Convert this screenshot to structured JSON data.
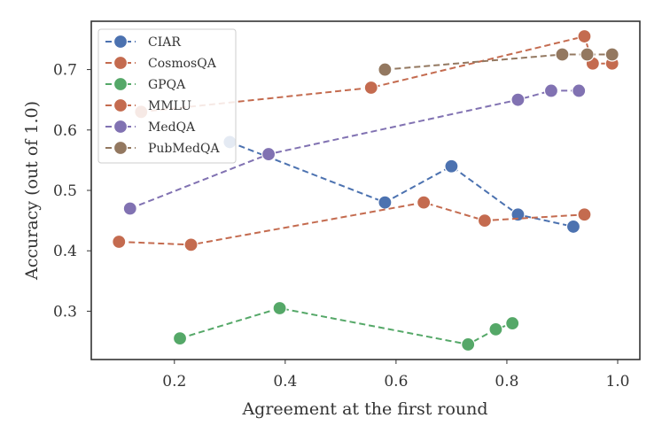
{
  "chart_data": {
    "type": "line",
    "xlabel": "Agreement at the first round",
    "ylabel": "Accuracy (out of 1.0)",
    "xlim": [
      0.05,
      1.04
    ],
    "ylim": [
      0.22,
      0.78
    ],
    "xticks": [
      "0.2",
      "0.4",
      "0.6",
      "0.8",
      "1.0"
    ],
    "yticks": [
      "0.3",
      "0.4",
      "0.5",
      "0.6",
      "0.7"
    ],
    "grid": false,
    "legend_position": "top-left",
    "series": [
      {
        "name": "CIAR",
        "color": "#4c72b0",
        "x": [
          0.3,
          0.58,
          0.7,
          0.82,
          0.92
        ],
        "y": [
          0.58,
          0.48,
          0.54,
          0.46,
          0.44
        ]
      },
      {
        "name": "CosmosQA",
        "color": "#c46b4f",
        "x": [
          0.14,
          0.555,
          0.94,
          0.955,
          0.99
        ],
        "y": [
          0.63,
          0.67,
          0.755,
          0.71,
          0.71
        ]
      },
      {
        "name": "GPQA",
        "color": "#55a868",
        "x": [
          0.21,
          0.39,
          0.73,
          0.78,
          0.81
        ],
        "y": [
          0.255,
          0.305,
          0.245,
          0.27,
          0.28
        ]
      },
      {
        "name": "MMLU",
        "color": "#c46b4f",
        "x": [
          0.1,
          0.23,
          0.65,
          0.76,
          0.94
        ],
        "y": [
          0.415,
          0.41,
          0.48,
          0.45,
          0.46
        ]
      },
      {
        "name": "MedQA",
        "color": "#8172b2",
        "x": [
          0.12,
          0.37,
          0.82,
          0.88,
          0.93
        ],
        "y": [
          0.47,
          0.56,
          0.65,
          0.665,
          0.665
        ]
      },
      {
        "name": "PubMedQA",
        "color": "#937860",
        "x": [
          0.58,
          0.9,
          0.945,
          0.99
        ],
        "y": [
          0.7,
          0.725,
          0.725,
          0.725
        ]
      }
    ]
  }
}
